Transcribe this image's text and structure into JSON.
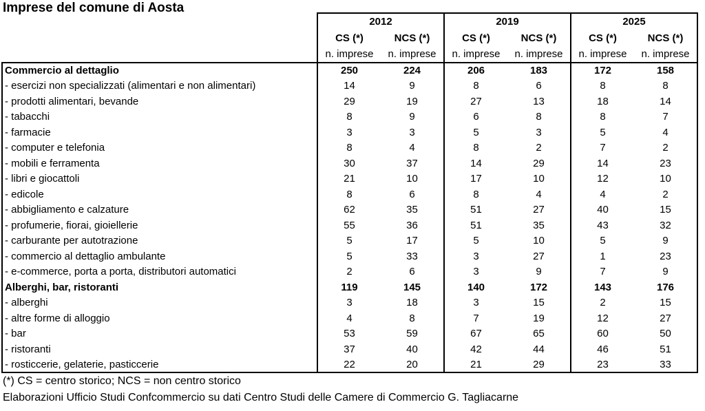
{
  "title": "Imprese del comune di Aosta",
  "table": {
    "year_groups": [
      {
        "year": "2012",
        "subcols": [
          "CS (*)",
          "NCS (*)"
        ]
      },
      {
        "year": "2019",
        "subcols": [
          "CS (*)",
          "NCS (*)"
        ]
      },
      {
        "year": "2025",
        "subcols": [
          "CS (*)",
          "NCS (*)"
        ]
      }
    ],
    "unit_label": "n. imprese",
    "rows": [
      {
        "label": "Commercio al dettaglio",
        "bold": true,
        "values": [
          250,
          224,
          206,
          183,
          172,
          158
        ]
      },
      {
        "label": "- esercizi non specializzati (alimentari e non alimentari)",
        "bold": false,
        "values": [
          14,
          9,
          8,
          6,
          8,
          8
        ]
      },
      {
        "label": "- prodotti alimentari, bevande",
        "bold": false,
        "values": [
          29,
          19,
          27,
          13,
          18,
          14
        ]
      },
      {
        "label": "- tabacchi",
        "bold": false,
        "values": [
          8,
          9,
          6,
          8,
          8,
          7
        ]
      },
      {
        "label": "- farmacie",
        "bold": false,
        "values": [
          3,
          3,
          5,
          3,
          5,
          4
        ]
      },
      {
        "label": "- computer e telefonia",
        "bold": false,
        "values": [
          8,
          4,
          8,
          2,
          7,
          2
        ]
      },
      {
        "label": "- mobili e ferramenta",
        "bold": false,
        "values": [
          30,
          37,
          14,
          29,
          14,
          23
        ]
      },
      {
        "label": "- libri e giocattoli",
        "bold": false,
        "values": [
          21,
          10,
          17,
          10,
          12,
          10
        ]
      },
      {
        "label": "- edicole",
        "bold": false,
        "values": [
          8,
          6,
          8,
          4,
          4,
          2
        ]
      },
      {
        "label": "- abbigliamento e calzature",
        "bold": false,
        "values": [
          62,
          35,
          51,
          27,
          40,
          15
        ]
      },
      {
        "label": "- profumerie, fiorai, gioiellerie",
        "bold": false,
        "values": [
          55,
          36,
          51,
          35,
          43,
          32
        ]
      },
      {
        "label": "- carburante per autotrazione",
        "bold": false,
        "values": [
          5,
          17,
          5,
          10,
          5,
          9
        ]
      },
      {
        "label": "- commercio al dettaglio ambulante",
        "bold": false,
        "values": [
          5,
          33,
          3,
          27,
          1,
          23
        ]
      },
      {
        "label": "- e-commerce, porta a porta, distributori automatici",
        "bold": false,
        "values": [
          2,
          6,
          3,
          9,
          7,
          9
        ]
      },
      {
        "label": "Alberghi, bar, ristoranti",
        "bold": true,
        "values": [
          119,
          145,
          140,
          172,
          143,
          176
        ]
      },
      {
        "label": "- alberghi",
        "bold": false,
        "values": [
          3,
          18,
          3,
          15,
          2,
          15
        ]
      },
      {
        "label": "- altre forme di alloggio",
        "bold": false,
        "values": [
          4,
          8,
          7,
          19,
          12,
          27
        ]
      },
      {
        "label": "- bar",
        "bold": false,
        "values": [
          53,
          59,
          67,
          65,
          60,
          50
        ]
      },
      {
        "label": "- ristoranti",
        "bold": false,
        "values": [
          37,
          40,
          42,
          44,
          46,
          51
        ]
      },
      {
        "label": "- rosticcerie, gelaterie, pasticcerie",
        "bold": false,
        "values": [
          22,
          20,
          21,
          29,
          23,
          33
        ]
      }
    ]
  },
  "footnotes": {
    "legend": "(*) CS = centro storico; NCS = non centro storico",
    "source": "Elaborazioni Ufficio Studi Confcommercio su dati Centro Studi delle Camere di Commercio G. Tagliacarne"
  }
}
